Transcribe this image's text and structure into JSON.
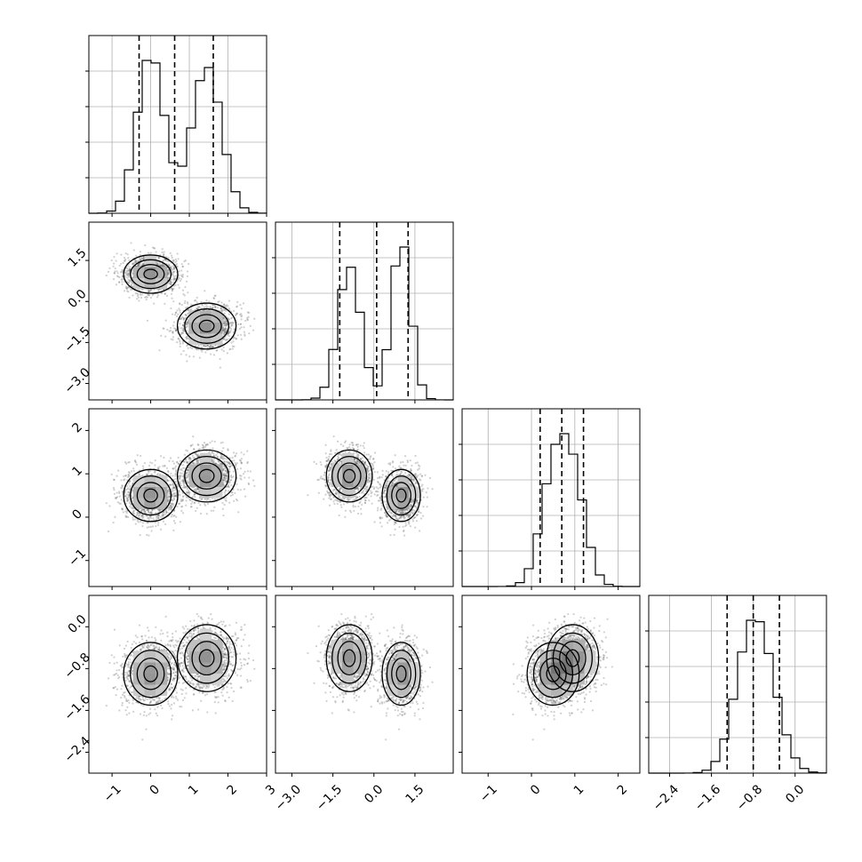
{
  "chart_data": {
    "type": "corner",
    "grid": true,
    "contour_levels": [
      0.5,
      1.0,
      1.5,
      2.0
    ],
    "colors": {
      "hist": "#000000",
      "points": "#555555",
      "contour": "#000000"
    },
    "variables": [
      {
        "range": [
          -1.6,
          3.0
        ],
        "ticks": [
          -1,
          0,
          1,
          2,
          3
        ],
        "tick_labels": [
          "−1",
          "0",
          "1",
          "2",
          "3"
        ],
        "quantiles": [
          -0.3,
          0.62,
          1.62
        ],
        "hist_peak": 1.0,
        "components": [
          {
            "mean": 0.0,
            "sd": 0.45,
            "w": 0.5
          },
          {
            "mean": 1.45,
            "sd": 0.45,
            "w": 0.5
          }
        ]
      },
      {
        "range": [
          -3.6,
          2.9
        ],
        "ticks": [
          -3.0,
          -1.5,
          0.0,
          1.5
        ],
        "tick_labels": [
          "−3.0",
          "−1.5",
          "0.0",
          "1.5"
        ],
        "quantiles": [
          -1.25,
          0.1,
          1.25
        ],
        "hist_peak": 1.0,
        "components": [
          {
            "mean": 1.0,
            "sd": 0.45,
            "w": 0.5
          },
          {
            "mean": -0.9,
            "sd": 0.55,
            "w": 0.5
          }
        ]
      },
      {
        "range": [
          -1.6,
          2.5
        ],
        "ticks": [
          -1,
          0,
          1,
          2
        ],
        "tick_labels": [
          "−1",
          "0",
          "1",
          "2"
        ],
        "quantiles": [
          0.2,
          0.7,
          1.2
        ],
        "hist_peak": 1.0,
        "components": [
          {
            "mean": 0.5,
            "sd": 0.38,
            "w": 0.5
          },
          {
            "mean": 0.95,
            "sd": 0.36,
            "w": 0.5
          }
        ]
      },
      {
        "range": [
          -2.8,
          0.6
        ],
        "ticks": [
          -2.4,
          -1.6,
          -0.8,
          0.0
        ],
        "tick_labels": [
          "−2.4",
          "−1.6",
          "−0.8",
          "0.0"
        ],
        "quantiles": [
          -1.3,
          -0.8,
          -0.3
        ],
        "hist_peak": 1.0,
        "components": [
          {
            "mean": -0.8,
            "sd": 0.33,
            "w": 1.0
          }
        ]
      }
    ],
    "mixture": [
      {
        "w": 0.5,
        "mean": [
          0.0,
          1.0,
          0.5,
          -0.9
        ],
        "sd": [
          0.35,
          0.35,
          0.3,
          0.3
        ]
      },
      {
        "w": 0.5,
        "mean": [
          1.45,
          -0.9,
          0.95,
          -0.6
        ],
        "sd": [
          0.38,
          0.42,
          0.3,
          0.32
        ]
      }
    ]
  }
}
